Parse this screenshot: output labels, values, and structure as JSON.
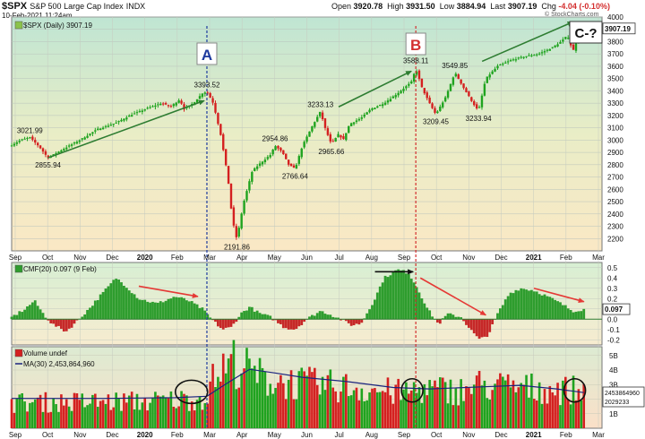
{
  "header": {
    "symbol": "$SPX",
    "name": "S&P 500 Large Cap Index",
    "exchange": "INDX",
    "date": "10-Feb-2021 11:24am",
    "open_label": "Open",
    "open": "3920.78",
    "high_label": "High",
    "high": "3931.50",
    "low_label": "Low",
    "low": "3884.94",
    "last_label": "Last",
    "last": "3907.19",
    "chg_label": "Chg",
    "chg": "-4.04 (-0.10%)",
    "watermark": "© StockCharts.com"
  },
  "colors": {
    "up": "#1fa31f",
    "down": "#d42020",
    "arrow": "#2e7d32",
    "trend_red": "#e53935",
    "ma_line": "#1a237e",
    "area": "#2e9d2e",
    "area_neg": "#c62828"
  },
  "chart_data": [
    {
      "type": "candlestick",
      "legend": "$SPX (Daily) 3907.19",
      "last_value_label": "3907.19",
      "ylim": [
        2100,
        4000
      ],
      "y_ticks": [
        2200,
        2300,
        2400,
        2500,
        2600,
        2700,
        2800,
        2900,
        3000,
        3100,
        3200,
        3300,
        3400,
        3500,
        3600,
        3700,
        3800,
        3900,
        4000
      ],
      "x_labels": [
        "Sep",
        "Oct",
        "Nov",
        "Dec",
        "2020",
        "Feb",
        "Mar",
        "Apr",
        "May",
        "Jun",
        "Jul",
        "Aug",
        "Sep",
        "Oct",
        "Nov",
        "Dec",
        "2021",
        "Feb",
        "Mar"
      ],
      "x_labels_bold": [
        "2020",
        "2021"
      ],
      "price_path": [
        [
          0,
          2960
        ],
        [
          10,
          3000
        ],
        [
          20,
          3022
        ],
        [
          30,
          2950
        ],
        [
          40,
          2856
        ],
        [
          55,
          2920
        ],
        [
          75,
          3000
        ],
        [
          95,
          3090
        ],
        [
          115,
          3140
        ],
        [
          130,
          3200
        ],
        [
          150,
          3260
        ],
        [
          165,
          3300
        ],
        [
          175,
          3270
        ],
        [
          185,
          3330
        ],
        [
          190,
          3250
        ],
        [
          200,
          3300
        ],
        [
          210,
          3380
        ],
        [
          215,
          3393
        ],
        [
          222,
          3300
        ],
        [
          230,
          3050
        ],
        [
          238,
          2700
        ],
        [
          243,
          2350
        ],
        [
          248,
          2192
        ],
        [
          255,
          2480
        ],
        [
          265,
          2750
        ],
        [
          275,
          2820
        ],
        [
          285,
          2880
        ],
        [
          290,
          2955
        ],
        [
          298,
          2900
        ],
        [
          305,
          2800
        ],
        [
          312,
          2767
        ],
        [
          320,
          2950
        ],
        [
          330,
          3100
        ],
        [
          340,
          3233
        ],
        [
          345,
          3100
        ],
        [
          352,
          2966
        ],
        [
          360,
          3050
        ],
        [
          365,
          3000
        ],
        [
          372,
          3130
        ],
        [
          385,
          3180
        ],
        [
          395,
          3250
        ],
        [
          410,
          3300
        ],
        [
          425,
          3380
        ],
        [
          440,
          3470
        ],
        [
          445,
          3580
        ],
        [
          452,
          3420
        ],
        [
          460,
          3300
        ],
        [
          467,
          3209
        ],
        [
          478,
          3350
        ],
        [
          488,
          3549
        ],
        [
          498,
          3420
        ],
        [
          508,
          3300
        ],
        [
          514,
          3234
        ],
        [
          522,
          3500
        ],
        [
          535,
          3600
        ],
        [
          550,
          3650
        ],
        [
          565,
          3680
        ],
        [
          580,
          3700
        ],
        [
          595,
          3750
        ],
        [
          605,
          3800
        ],
        [
          612,
          3850
        ],
        [
          618,
          3720
        ],
        [
          624,
          3860
        ],
        [
          630,
          3907
        ]
      ],
      "annotations": [
        {
          "text": "3021.99",
          "x": 20,
          "y": 3022,
          "pos": "above"
        },
        {
          "text": "2855.94",
          "x": 40,
          "y": 2856,
          "pos": "below"
        },
        {
          "text": "3393.52",
          "x": 215,
          "y": 3393,
          "pos": "above"
        },
        {
          "text": "2191.86",
          "x": 248,
          "y": 2192,
          "pos": "below"
        },
        {
          "text": "2954.86",
          "x": 290,
          "y": 2955,
          "pos": "above"
        },
        {
          "text": "2766.64",
          "x": 312,
          "y": 2767,
          "pos": "below"
        },
        {
          "text": "3233.13",
          "x": 340,
          "y": 3233,
          "pos": "above"
        },
        {
          "text": "2965.66",
          "x": 352,
          "y": 2966,
          "pos": "below"
        },
        {
          "text": "3588.11",
          "x": 445,
          "y": 3588,
          "pos": "above"
        },
        {
          "text": "3209.45",
          "x": 467,
          "y": 3209,
          "pos": "below"
        },
        {
          "text": "3549.85",
          "x": 488,
          "y": 3549,
          "pos": "above"
        },
        {
          "text": "3233.94",
          "x": 514,
          "y": 3234,
          "pos": "below"
        }
      ],
      "trend_arrows": [
        {
          "from": [
            40,
            2856
          ],
          "to": [
            212,
            3320
          ]
        },
        {
          "from": [
            360,
            3270
          ],
          "to": [
            440,
            3560
          ]
        },
        {
          "from": [
            518,
            3640
          ],
          "to": [
            618,
            3960
          ]
        }
      ],
      "markers": [
        {
          "label": "A",
          "x": 215,
          "color": "#1e3a9e",
          "line": "#1e3a9e"
        },
        {
          "label": "B",
          "x": 445,
          "color": "#d32f2f",
          "line": "#d32f2f"
        }
      ],
      "callout": "C-?"
    },
    {
      "type": "area",
      "legend": "CMF(20) 0.097 (9 Feb)",
      "last_value_label": "0.097",
      "ylim": [
        -0.25,
        0.55
      ],
      "y_ticks": [
        -0.2,
        -0.1,
        0.0,
        0.1,
        0.2,
        0.3,
        0.4,
        0.5
      ],
      "path": [
        [
          0,
          0.02
        ],
        [
          15,
          0.1
        ],
        [
          25,
          0.18
        ],
        [
          35,
          0.05
        ],
        [
          45,
          -0.05
        ],
        [
          60,
          -0.12
        ],
        [
          72,
          -0.02
        ],
        [
          85,
          0.1
        ],
        [
          100,
          0.25
        ],
        [
          115,
          0.4
        ],
        [
          125,
          0.33
        ],
        [
          140,
          0.2
        ],
        [
          160,
          0.15
        ],
        [
          180,
          0.22
        ],
        [
          195,
          0.18
        ],
        [
          210,
          0.1
        ],
        [
          220,
          0.0
        ],
        [
          232,
          -0.1
        ],
        [
          242,
          -0.08
        ],
        [
          252,
          0.05
        ],
        [
          262,
          0.12
        ],
        [
          272,
          0.06
        ],
        [
          285,
          0.02
        ],
        [
          300,
          -0.08
        ],
        [
          312,
          -0.1
        ],
        [
          325,
          0.0
        ],
        [
          340,
          0.08
        ],
        [
          350,
          0.05
        ],
        [
          362,
          0.0
        ],
        [
          375,
          -0.06
        ],
        [
          385,
          -0.04
        ],
        [
          400,
          0.2
        ],
        [
          410,
          0.4
        ],
        [
          425,
          0.48
        ],
        [
          437,
          0.45
        ],
        [
          447,
          0.3
        ],
        [
          458,
          0.1
        ],
        [
          470,
          -0.05
        ],
        [
          480,
          0.05
        ],
        [
          495,
          0.02
        ],
        [
          505,
          -0.1
        ],
        [
          515,
          -0.2
        ],
        [
          525,
          -0.15
        ],
        [
          535,
          0.05
        ],
        [
          548,
          0.25
        ],
        [
          560,
          0.3
        ],
        [
          575,
          0.28
        ],
        [
          590,
          0.22
        ],
        [
          605,
          0.15
        ],
        [
          618,
          0.08
        ],
        [
          630,
          0.097
        ]
      ],
      "trend_arrows": [
        {
          "from": [
            140,
            0.32
          ],
          "to": [
            205,
            0.22
          ],
          "color": "#e53935"
        },
        {
          "from": [
            400,
            0.46
          ],
          "to": [
            442,
            0.46
          ],
          "color": "#111111"
        },
        {
          "from": [
            450,
            0.4
          ],
          "to": [
            522,
            0.04
          ],
          "color": "#e53935"
        },
        {
          "from": [
            575,
            0.3
          ],
          "to": [
            630,
            0.17
          ],
          "color": "#e53935"
        }
      ]
    },
    {
      "type": "bar",
      "legend": "Volume undef",
      "ma_legend": "MA(30) 2,453,864,960",
      "last_value_labels": [
        "2453864960",
        "2029233"
      ],
      "ylim": [
        0,
        5.6
      ],
      "y_tick_labels": [
        "1B",
        "2B",
        "3B",
        "4B",
        "5B"
      ],
      "y_ticks": [
        1,
        2,
        3,
        4,
        5
      ],
      "volume_profile": [
        [
          0,
          1.9
        ],
        [
          150,
          2.0
        ],
        [
          210,
          2.2
        ],
        [
          215,
          2.6
        ],
        [
          225,
          4.0
        ],
        [
          245,
          5.0
        ],
        [
          260,
          4.3
        ],
        [
          280,
          3.6
        ],
        [
          320,
          3.3
        ],
        [
          380,
          3.0
        ],
        [
          430,
          2.6
        ],
        [
          445,
          2.9
        ],
        [
          500,
          2.8
        ],
        [
          515,
          3.2
        ],
        [
          560,
          3.0
        ],
        [
          600,
          2.9
        ],
        [
          630,
          2.7
        ]
      ],
      "ma_path": [
        [
          0,
          2.05
        ],
        [
          100,
          2.05
        ],
        [
          180,
          2.1
        ],
        [
          215,
          2.2
        ],
        [
          240,
          3.2
        ],
        [
          262,
          4.05
        ],
        [
          290,
          3.8
        ],
        [
          320,
          3.5
        ],
        [
          370,
          3.2
        ],
        [
          420,
          2.8
        ],
        [
          460,
          2.7
        ],
        [
          520,
          2.85
        ],
        [
          560,
          2.95
        ],
        [
          600,
          2.7
        ],
        [
          630,
          2.45
        ]
      ],
      "circles": [
        [
          198,
          2.5
        ],
        [
          441,
          2.6
        ],
        [
          620,
          2.6
        ]
      ]
    }
  ]
}
